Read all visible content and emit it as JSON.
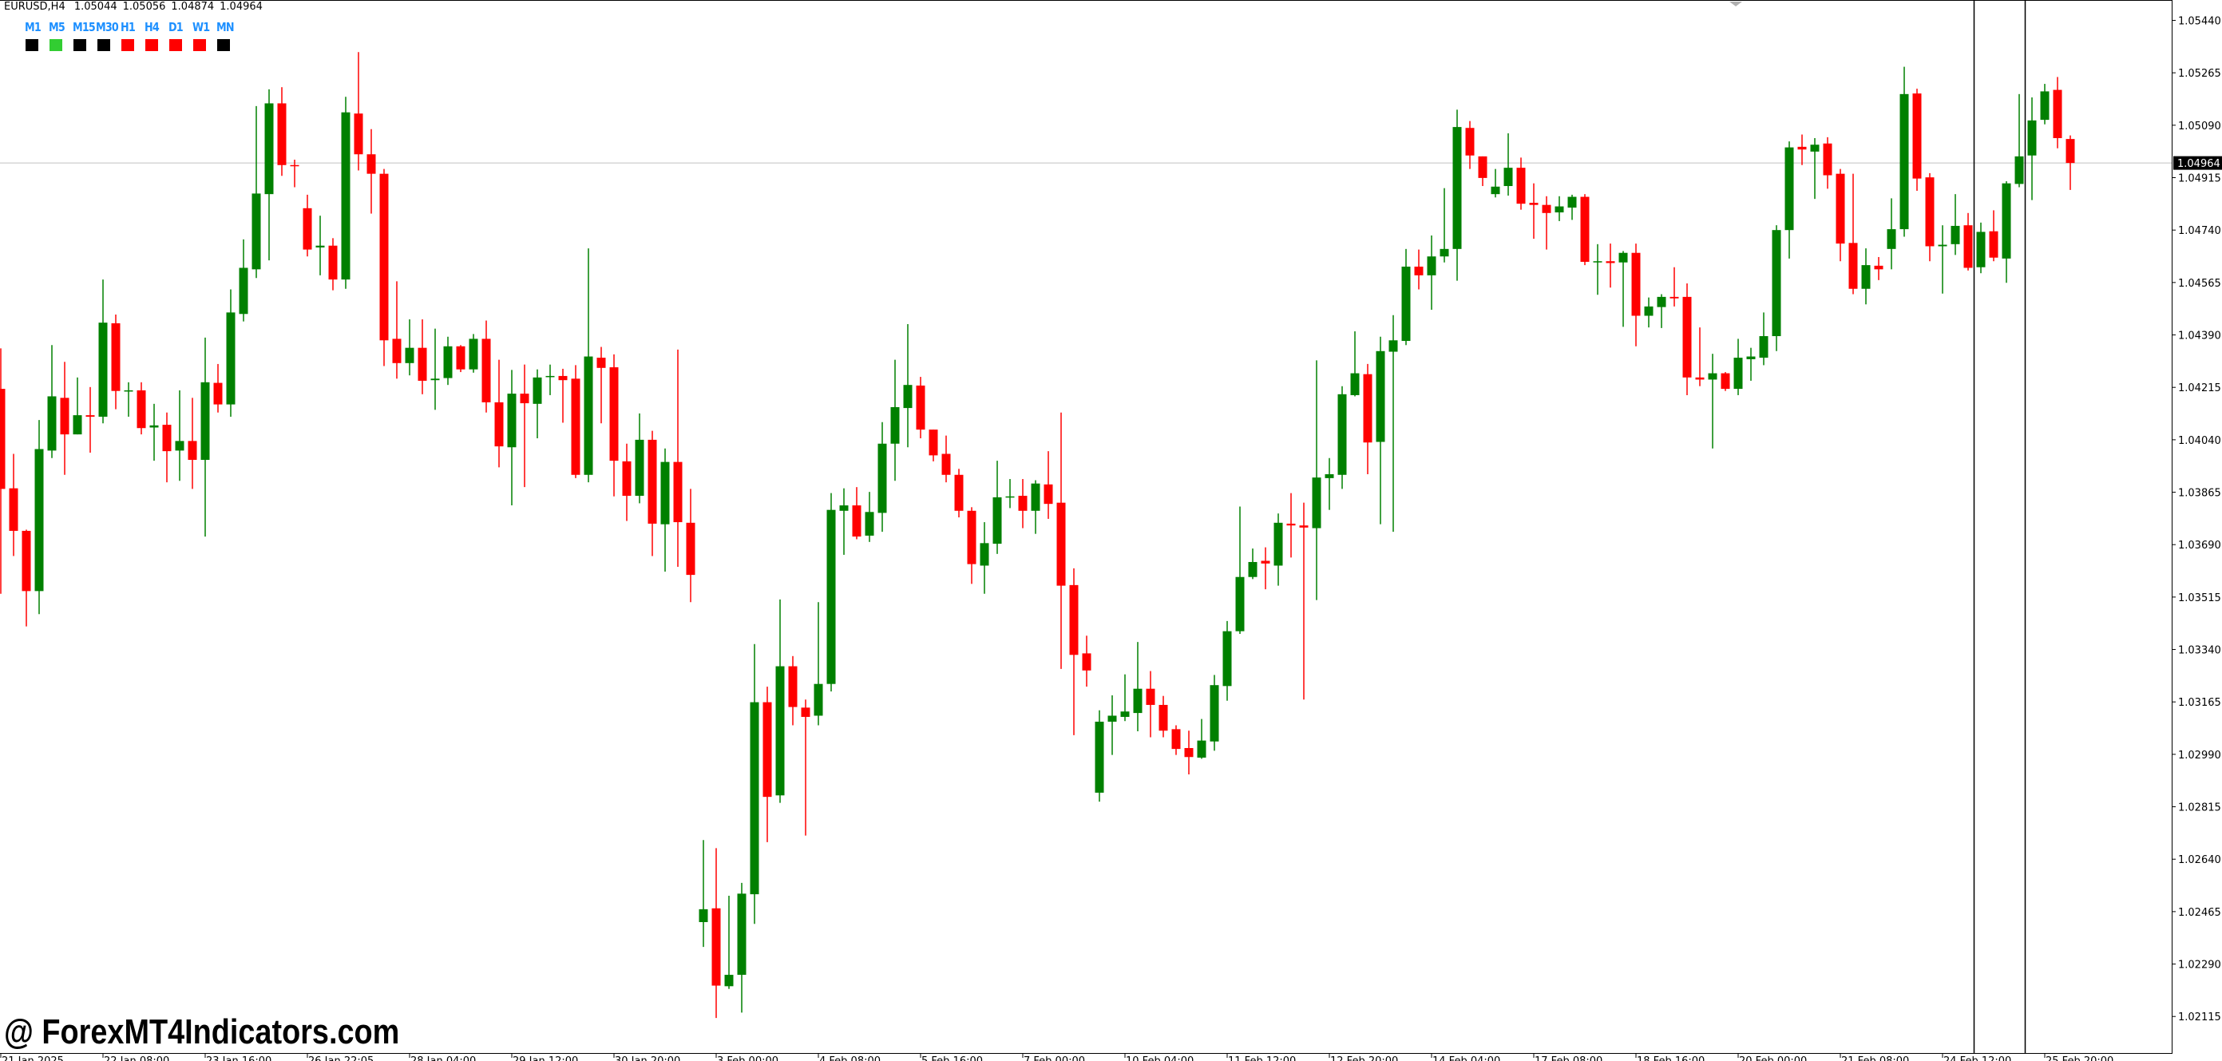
{
  "header": {
    "symbol": "EURUSD,H4",
    "open": "1.05044",
    "high": "1.05056",
    "low": "1.04874",
    "close": "1.04964"
  },
  "timeframes": [
    {
      "label": "M1",
      "status_color": "#000000"
    },
    {
      "label": "M5",
      "status_color": "#32cd32"
    },
    {
      "label": "M15",
      "status_color": "#000000"
    },
    {
      "label": "M30",
      "status_color": "#000000"
    },
    {
      "label": "H1",
      "status_color": "#ff0000"
    },
    {
      "label": "H4",
      "status_color": "#ff0000"
    },
    {
      "label": "D1",
      "status_color": "#ff0000"
    },
    {
      "label": "W1",
      "status_color": "#ff0000"
    },
    {
      "label": "MN",
      "status_color": "#000000"
    }
  ],
  "watermark": "@ ForexMT4Indicators.com",
  "colors": {
    "bull": "#008000",
    "bear": "#ff0000",
    "price_line": "#c0c0c0",
    "timeframe_label": "#1e90ff"
  },
  "chart_data": {
    "type": "candlestick",
    "symbol": "EURUSD",
    "timeframe": "H4",
    "ylim": [
      1.01993,
      1.05508
    ],
    "grid": false,
    "current_price": "1.04964",
    "y_ticks": [
      "1.05440",
      "1.05265",
      "1.05090",
      "1.04915",
      "1.04740",
      "1.04565",
      "1.04390",
      "1.04215",
      "1.04040",
      "1.03865",
      "1.03690",
      "1.03515",
      "1.03340",
      "1.03165",
      "1.02990",
      "1.02815",
      "1.02640",
      "1.02465",
      "1.02290",
      "1.02115"
    ],
    "x_ticks": [
      {
        "index": 0,
        "label": "21 Jan 2025"
      },
      {
        "index": 8,
        "label": "22 Jan 08:00"
      },
      {
        "index": 16,
        "label": "23 Jan 16:00"
      },
      {
        "index": 24,
        "label": "26 Jan 22:05"
      },
      {
        "index": 32,
        "label": "28 Jan 04:00"
      },
      {
        "index": 40,
        "label": "29 Jan 12:00"
      },
      {
        "index": 48,
        "label": "30 Jan 20:00"
      },
      {
        "index": 56,
        "label": "3 Feb 00:00"
      },
      {
        "index": 64,
        "label": "4 Feb 08:00"
      },
      {
        "index": 72,
        "label": "5 Feb 16:00"
      },
      {
        "index": 80,
        "label": "7 Feb 00:00"
      },
      {
        "index": 88,
        "label": "10 Feb 04:00"
      },
      {
        "index": 96,
        "label": "11 Feb 12:00"
      },
      {
        "index": 104,
        "label": "12 Feb 20:00"
      },
      {
        "index": 112,
        "label": "14 Feb 04:00"
      },
      {
        "index": 120,
        "label": "17 Feb 08:00"
      },
      {
        "index": 128,
        "label": "18 Feb 16:00"
      },
      {
        "index": 136,
        "label": "20 Feb 00:00"
      },
      {
        "index": 144,
        "label": "21 Feb 08:00"
      },
      {
        "index": 152,
        "label": "24 Feb 12:00"
      },
      {
        "index": 160,
        "label": "25 Feb 20:00"
      }
    ],
    "candle_fields": [
      "open",
      "high",
      "low",
      "close"
    ],
    "candles": [
      [
        1.0421,
        1.04345,
        1.03526,
        1.03876
      ],
      [
        1.03878,
        1.03993,
        1.03652,
        1.03736
      ],
      [
        1.03736,
        1.0374,
        1.03417,
        1.03535
      ],
      [
        1.03535,
        1.04106,
        1.03458,
        1.04009
      ],
      [
        1.04004,
        1.04356,
        1.03979,
        1.04185
      ],
      [
        1.0418,
        1.043,
        1.03923,
        1.04058
      ],
      [
        1.04058,
        1.04248,
        1.04058,
        1.04122
      ],
      [
        1.04122,
        1.04216,
        1.03997,
        1.04117
      ],
      [
        1.04117,
        1.04575,
        1.04095,
        1.04431
      ],
      [
        1.04429,
        1.04458,
        1.04142,
        1.04203
      ],
      [
        1.04201,
        1.04232,
        1.04117,
        1.04205
      ],
      [
        1.04205,
        1.04232,
        1.04058,
        1.04079
      ],
      [
        1.04081,
        1.0416,
        1.0397,
        1.04088
      ],
      [
        1.0409,
        1.04131,
        1.03898,
        1.04002
      ],
      [
        1.04004,
        1.04205,
        1.03903,
        1.04036
      ],
      [
        1.04036,
        1.0418,
        1.03876,
        1.03973
      ],
      [
        1.03973,
        1.04381,
        1.03717,
        1.04232
      ],
      [
        1.0423,
        1.04293,
        1.04131,
        1.04158
      ],
      [
        1.04158,
        1.04542,
        1.04117,
        1.04465
      ],
      [
        1.0446,
        1.04709,
        1.04435,
        1.04614
      ],
      [
        1.04609,
        1.05154,
        1.0458,
        1.04862
      ],
      [
        1.0486,
        1.0521,
        1.04639,
        1.05163
      ],
      [
        1.05163,
        1.05217,
        1.04921,
        1.04957
      ],
      [
        1.04957,
        1.04975,
        1.04883,
        1.04953
      ],
      [
        1.04813,
        1.04858,
        1.04652,
        1.04675
      ],
      [
        1.04682,
        1.04788,
        1.04589,
        1.04688
      ],
      [
        1.04688,
        1.04713,
        1.04539,
        1.04575
      ],
      [
        1.04575,
        1.05185,
        1.04544,
        1.05133
      ],
      [
        1.05129,
        1.05334,
        1.04939,
        1.04993
      ],
      [
        1.04993,
        1.05077,
        1.04795,
        1.04928
      ],
      [
        1.04928,
        1.04944,
        1.04286,
        1.04372
      ],
      [
        1.04377,
        1.04569,
        1.04244,
        1.04296
      ],
      [
        1.04296,
        1.04442,
        1.04255,
        1.04347
      ],
      [
        1.04347,
        1.04442,
        1.04192,
        1.04237
      ],
      [
        1.04239,
        1.04411,
        1.0414,
        1.04244
      ],
      [
        1.04246,
        1.04384,
        1.04223,
        1.04352
      ],
      [
        1.04352,
        1.04356,
        1.04266,
        1.04275
      ],
      [
        1.04275,
        1.04393,
        1.04264,
        1.04377
      ],
      [
        1.04377,
        1.04438,
        1.04131,
        1.04165
      ],
      [
        1.04165,
        1.04307,
        1.03948,
        1.04018
      ],
      [
        1.04015,
        1.04273,
        1.03821,
        1.04194
      ],
      [
        1.04194,
        1.04291,
        1.03882,
        1.04162
      ],
      [
        1.0416,
        1.04275,
        1.04045,
        1.04248
      ],
      [
        1.0425,
        1.04291,
        1.04189,
        1.04253
      ],
      [
        1.04253,
        1.04277,
        1.04097,
        1.04239
      ],
      [
        1.04244,
        1.04289,
        1.03912,
        1.03923
      ],
      [
        1.03923,
        1.04679,
        1.03898,
        1.04318
      ],
      [
        1.04314,
        1.0435,
        1.04095,
        1.0428
      ],
      [
        1.04282,
        1.04325,
        1.03851,
        1.0397
      ],
      [
        1.03968,
        1.04027,
        1.03769,
        1.03853
      ],
      [
        1.03853,
        1.04128,
        1.03828,
        1.0404
      ],
      [
        1.0404,
        1.0407,
        1.03652,
        1.0376
      ],
      [
        1.03758,
        1.04011,
        1.036,
        1.03966
      ],
      [
        1.03966,
        1.04341,
        1.03616,
        1.03765
      ],
      [
        1.03763,
        1.03876,
        1.03498,
        1.03589
      ],
      [
        1.0243,
        1.02704,
        1.02347,
        1.02473
      ],
      [
        1.02476,
        1.02677,
        1.0211,
        1.02218
      ],
      [
        1.02216,
        1.02518,
        1.02207,
        1.02254
      ],
      [
        1.02254,
        1.02561,
        1.02128,
        1.02525
      ],
      [
        1.02523,
        1.03358,
        1.02424,
        1.03164
      ],
      [
        1.03164,
        1.03216,
        1.02697,
        1.02848
      ],
      [
        1.02853,
        1.03507,
        1.02828,
        1.03284
      ],
      [
        1.03284,
        1.03318,
        1.03087,
        1.03148
      ],
      [
        1.03146,
        1.03173,
        1.02719,
        1.03115
      ],
      [
        1.03119,
        1.03498,
        1.03087,
        1.03225
      ],
      [
        1.03225,
        1.03862,
        1.032,
        1.03806
      ],
      [
        1.03803,
        1.03878,
        1.03656,
        1.03821
      ],
      [
        1.03821,
        1.03882,
        1.03708,
        1.03717
      ],
      [
        1.0372,
        1.03866,
        1.03699,
        1.03799
      ],
      [
        1.03796,
        1.04099,
        1.03733,
        1.04027
      ],
      [
        1.04027,
        1.04307,
        1.03903,
        1.04149
      ],
      [
        1.04146,
        1.04426,
        1.04015,
        1.04223
      ],
      [
        1.04221,
        1.0425,
        1.04045,
        1.04074
      ],
      [
        1.04074,
        1.04074,
        1.03968,
        1.03988
      ],
      [
        1.03993,
        1.04054,
        1.03898,
        1.03923
      ],
      [
        1.03923,
        1.03943,
        1.03781,
        1.03803
      ],
      [
        1.03803,
        1.03815,
        1.03559,
        1.03625
      ],
      [
        1.0362,
        1.03765,
        1.03526,
        1.03695
      ],
      [
        1.03693,
        1.0397,
        1.03659,
        1.03848
      ],
      [
        1.03848,
        1.03909,
        1.03812,
        1.03851
      ],
      [
        1.03853,
        1.03909,
        1.03745,
        1.03803
      ],
      [
        1.03803,
        1.03905,
        1.03726,
        1.03894
      ],
      [
        1.03891,
        1.04002,
        1.03776,
        1.03826
      ],
      [
        1.0383,
        1.04131,
        1.03275,
        1.03553
      ],
      [
        1.03555,
        1.03611,
        1.03054,
        1.03322
      ],
      [
        1.03327,
        1.03386,
        1.03216,
        1.0327
      ],
      [
        1.02862,
        1.03137,
        1.02832,
        1.03099
      ],
      [
        1.03099,
        1.03187,
        1.02988,
        1.03119
      ],
      [
        1.03115,
        1.03257,
        1.03101,
        1.03133
      ],
      [
        1.03128,
        1.03365,
        1.03067,
        1.03209
      ],
      [
        1.03209,
        1.03268,
        1.03047,
        1.03155
      ],
      [
        1.03155,
        1.03185,
        1.03047,
        1.03069
      ],
      [
        1.03074,
        1.03087,
        1.02988,
        1.03008
      ],
      [
        1.03011,
        1.03069,
        1.02923,
        1.02981
      ],
      [
        1.02979,
        1.03108,
        1.02975,
        1.03036
      ],
      [
        1.03033,
        1.03255,
        1.03002,
        1.03221
      ],
      [
        1.03218,
        1.03435,
        1.03169,
        1.03401
      ],
      [
        1.03401,
        1.03817,
        1.03392,
        1.03582
      ],
      [
        1.03582,
        1.03677,
        1.03575,
        1.03632
      ],
      [
        1.03636,
        1.03681,
        1.03541,
        1.03627
      ],
      [
        1.0362,
        1.03794,
        1.03553,
        1.03763
      ],
      [
        1.0376,
        1.03862,
        1.03647,
        1.03754
      ],
      [
        1.03754,
        1.0383,
        1.03173,
        1.03747
      ],
      [
        1.03745,
        1.04305,
        1.03505,
        1.03914
      ],
      [
        1.03912,
        1.03979,
        1.03806,
        1.03925
      ],
      [
        1.03923,
        1.04219,
        1.03876,
        1.04192
      ],
      [
        1.04189,
        1.04402,
        1.04185,
        1.04262
      ],
      [
        1.04259,
        1.04293,
        1.03925,
        1.04031
      ],
      [
        1.04033,
        1.04384,
        1.03758,
        1.04336
      ],
      [
        1.04334,
        1.04456,
        1.03733,
        1.04372
      ],
      [
        1.0437,
        1.04677,
        1.04356,
        1.04618
      ],
      [
        1.04618,
        1.04675,
        1.04542,
        1.04589
      ],
      [
        1.04589,
        1.04722,
        1.04474,
        1.04652
      ],
      [
        1.04652,
        1.0488,
        1.04632,
        1.04677
      ],
      [
        1.04677,
        1.05142,
        1.04571,
        1.05084
      ],
      [
        1.05081,
        1.05104,
        1.04944,
        1.04989
      ],
      [
        1.04986,
        1.04986,
        1.04887,
        1.04914
      ],
      [
        1.0486,
        1.04944,
        1.04849,
        1.04885
      ],
      [
        1.04887,
        1.05063,
        1.04855,
        1.04948
      ],
      [
        1.04948,
        1.04982,
        1.04808,
        1.04828
      ],
      [
        1.04831,
        1.04896,
        1.04711,
        1.04824
      ],
      [
        1.04824,
        1.04853,
        1.04675,
        1.04797
      ],
      [
        1.04799,
        1.04853,
        1.0477,
        1.04819
      ],
      [
        1.04815,
        1.04858,
        1.04774,
        1.04851
      ],
      [
        1.04851,
        1.0486,
        1.04623,
        1.04634
      ],
      [
        1.04632,
        1.04693,
        1.04524,
        1.04636
      ],
      [
        1.04636,
        1.04695,
        1.04548,
        1.0463
      ],
      [
        1.04632,
        1.0467,
        1.04417,
        1.04664
      ],
      [
        1.04664,
        1.04695,
        1.04352,
        1.04454
      ],
      [
        1.04454,
        1.04515,
        1.04415,
        1.04485
      ],
      [
        1.04483,
        1.04526,
        1.04413,
        1.04517
      ],
      [
        1.04517,
        1.04616,
        1.04485,
        1.04512
      ],
      [
        1.04517,
        1.04562,
        1.04189,
        1.04248
      ],
      [
        1.04248,
        1.04415,
        1.04219,
        1.04241
      ],
      [
        1.04241,
        1.04327,
        1.04011,
        1.04262
      ],
      [
        1.04262,
        1.04266,
        1.04203,
        1.0421
      ],
      [
        1.0421,
        1.04377,
        1.04189,
        1.04314
      ],
      [
        1.04309,
        1.04347,
        1.04237,
        1.04318
      ],
      [
        1.04314,
        1.04465,
        1.04289,
        1.04386
      ],
      [
        1.04386,
        1.04756,
        1.04336,
        1.0474
      ],
      [
        1.0474,
        1.05036,
        1.04645,
        1.05016
      ],
      [
        1.05018,
        1.05059,
        1.04957,
        1.05009
      ],
      [
        1.05002,
        1.05047,
        1.04844,
        1.05025
      ],
      [
        1.05029,
        1.0505,
        1.04878,
        1.04923
      ],
      [
        1.04928,
        1.04944,
        1.04636,
        1.04695
      ],
      [
        1.04697,
        1.04928,
        1.04526,
        1.04544
      ],
      [
        1.04544,
        1.04679,
        1.04492,
        1.04623
      ],
      [
        1.04621,
        1.0465,
        1.04573,
        1.04609
      ],
      [
        1.04677,
        1.04846,
        1.04609,
        1.04743
      ],
      [
        1.04743,
        1.05285,
        1.04718,
        1.05194
      ],
      [
        1.05196,
        1.05212,
        1.04871,
        1.04912
      ],
      [
        1.04916,
        1.0493,
        1.04636,
        1.04686
      ],
      [
        1.04686,
        1.04756,
        1.04528,
        1.04691
      ],
      [
        1.04693,
        1.0486,
        1.04657,
        1.04754
      ],
      [
        1.04756,
        1.04797,
        1.04605,
        1.04614
      ],
      [
        1.04616,
        1.04765,
        1.04596,
        1.04734
      ],
      [
        1.04736,
        1.04806,
        1.04636,
        1.04648
      ],
      [
        1.04645,
        1.04903,
        1.04564,
        1.04896
      ],
      [
        1.04894,
        1.05194,
        1.04883,
        1.04986
      ],
      [
        1.04989,
        1.05183,
        1.0484,
        1.05106
      ],
      [
        1.05108,
        1.05228,
        1.05093,
        1.05203
      ],
      [
        1.05208,
        1.05251,
        1.05013,
        1.05047
      ],
      [
        1.05044,
        1.05056,
        1.04874,
        1.04964
      ]
    ]
  }
}
